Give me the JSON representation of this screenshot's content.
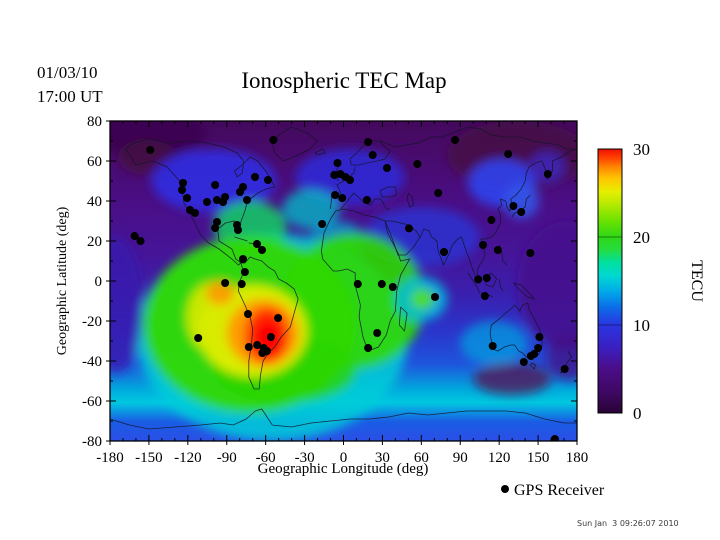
{
  "figure": {
    "date_line1": "01/03/10",
    "date_line2": "17:00 UT",
    "title": "Ionospheric TEC Map",
    "legend_label": "GPS Receiver",
    "timestamp": "Sun Jan  3 09:26:07 2010"
  },
  "chart_data": {
    "type": "heatmap",
    "title": "Ionospheric TEC Map",
    "datetime_shown": "01/03/10 17:00 UT",
    "xlabel": "Geographic Longitude (deg)",
    "ylabel": "Geographic Latitude (deg)",
    "xlim": [
      -180,
      180
    ],
    "ylim": [
      -80,
      80
    ],
    "x_ticks": [
      -180,
      -150,
      -120,
      -90,
      -60,
      -30,
      0,
      30,
      60,
      90,
      120,
      150,
      180
    ],
    "y_ticks": [
      80,
      60,
      40,
      20,
      0,
      -20,
      -40,
      -60,
      -80
    ],
    "x_minor_step": 10,
    "y_minor_step": 10,
    "grid": false,
    "colorbar": {
      "label": "TECU",
      "ticks": [
        0,
        10,
        20,
        30
      ],
      "range": [
        0,
        30
      ],
      "gradient": [
        {
          "t": 0.0,
          "c": "#2a0336"
        },
        {
          "t": 0.08,
          "c": "#3f0864"
        },
        {
          "t": 0.17,
          "c": "#4a0e8a"
        },
        {
          "t": 0.25,
          "c": "#3a20c2"
        },
        {
          "t": 0.333,
          "c": "#2a35e0"
        },
        {
          "t": 0.4,
          "c": "#0c6ce8"
        },
        {
          "t": 0.46,
          "c": "#00aae8"
        },
        {
          "t": 0.52,
          "c": "#00d8d2"
        },
        {
          "t": 0.57,
          "c": "#00e0a0"
        },
        {
          "t": 0.62,
          "c": "#25dc3e"
        },
        {
          "t": 0.667,
          "c": "#2ed816"
        },
        {
          "t": 0.73,
          "c": "#6ee200"
        },
        {
          "t": 0.79,
          "c": "#b4ea00"
        },
        {
          "t": 0.84,
          "c": "#e8ee00"
        },
        {
          "t": 0.89,
          "c": "#ffc400"
        },
        {
          "t": 0.93,
          "c": "#ff8800"
        },
        {
          "t": 0.97,
          "c": "#ff3c00"
        },
        {
          "t": 1.0,
          "c": "#f01000"
        }
      ]
    },
    "tec_peak": {
      "lon": -58,
      "lat": -27,
      "tecu": 30,
      "region": "South America (equatorial anomaly)"
    },
    "base_latitude_gradient": [
      {
        "o": 0.0,
        "c": "#43095c"
      },
      {
        "o": 0.1,
        "c": "#480b6c"
      },
      {
        "o": 0.26,
        "c": "#4a0e86"
      },
      {
        "o": 0.42,
        "c": "#451599"
      },
      {
        "o": 0.54,
        "c": "#3a1fae"
      },
      {
        "o": 0.66,
        "c": "#2a36cc"
      },
      {
        "o": 0.76,
        "c": "#1e55dc"
      },
      {
        "o": 0.84,
        "c": "#00aadd"
      },
      {
        "o": 0.88,
        "c": "#00c8e0"
      },
      {
        "o": 0.94,
        "c": "#1a5ce4"
      },
      {
        "o": 1.0,
        "c": "#2b4fe6"
      }
    ],
    "heat_blobs": [
      {
        "lon": -150,
        "lat": 74,
        "rlon": 45,
        "rlat": 12,
        "c": "#3c0752",
        "op": 0.9
      },
      {
        "lon": 135,
        "lat": 63,
        "rlon": 55,
        "rlat": 17,
        "c": "#470a46",
        "op": 0.85
      },
      {
        "lon": -152,
        "lat": 62,
        "rlon": 22,
        "rlat": 9,
        "c": "#430a40",
        "op": 0.8
      },
      {
        "lon": 172,
        "lat": -2,
        "rlon": 38,
        "rlat": 32,
        "c": "#45098c",
        "op": 0.85
      },
      {
        "lon": -100,
        "lat": 50,
        "rlon": 48,
        "rlat": 16,
        "c": "#2d2de8",
        "op": 0.85
      },
      {
        "lon": 5,
        "lat": 52,
        "rlon": 42,
        "rlat": 14,
        "c": "#2d2de0",
        "op": 0.8
      },
      {
        "lon": 60,
        "lat": 22,
        "rlon": 45,
        "rlat": 15,
        "c": "#2635d8",
        "op": 0.75
      },
      {
        "lon": 122,
        "lat": 49,
        "rlon": 26,
        "rlat": 12,
        "c": "#2f42ee",
        "op": 0.9
      },
      {
        "lon": 137,
        "lat": 40,
        "rlon": 14,
        "rlat": 9,
        "c": "#3355e8",
        "op": 0.85
      },
      {
        "lon": 157,
        "lat": 57,
        "rlon": 14,
        "rlat": 8,
        "c": "#3a2ad0",
        "op": 0.7
      },
      {
        "lon": -55,
        "lat": -28,
        "rlon": 105,
        "rlat": 52,
        "c": "#00ccd8",
        "op": 0.85
      },
      {
        "lon": -72,
        "lat": 27,
        "rlon": 28,
        "rlat": 13,
        "c": "#10dc60",
        "op": 0.8
      },
      {
        "lon": -25,
        "lat": 36,
        "rlon": 22,
        "rlat": 10,
        "c": "#00c0c8",
        "op": 0.75
      },
      {
        "lon": -5,
        "lat": 20,
        "rlon": 22,
        "rlat": 10,
        "c": "#00b4d4",
        "op": 0.7
      },
      {
        "lon": -72,
        "lat": -22,
        "rlon": 82,
        "rlat": 44,
        "c": "#2fd800",
        "op": 0.95
      },
      {
        "lon": 8,
        "lat": -10,
        "rlon": 55,
        "rlat": 34,
        "c": "#2fd800",
        "op": 0.9
      },
      {
        "lon": -45,
        "lat": -45,
        "rlon": 55,
        "rlat": 16,
        "c": "#2bd400",
        "op": 0.8
      },
      {
        "lon": -175,
        "lat": -12,
        "rlon": 20,
        "rlat": 34,
        "c": "#381cae",
        "op": 0.8
      },
      {
        "lon": 60,
        "lat": -9,
        "rlon": 20,
        "rlat": 11,
        "c": "#00bce0",
        "op": 0.85
      },
      {
        "lon": 61,
        "lat": -9,
        "rlon": 9,
        "rlat": 5,
        "c": "#55e000",
        "op": 0.9
      },
      {
        "lon": -70,
        "lat": -25,
        "rlon": 42,
        "rlat": 23,
        "c": "#e2ee00",
        "op": 0.95
      },
      {
        "lon": -103,
        "lat": -18,
        "rlon": 18,
        "rlat": 17,
        "c": "#d8ea00",
        "op": 0.9
      },
      {
        "lon": -62,
        "lat": -26,
        "rlon": 28,
        "rlat": 17,
        "c": "#ff9800",
        "op": 0.95
      },
      {
        "lon": -95,
        "lat": -6,
        "rlon": 11,
        "rlat": 6,
        "c": "#ff9800",
        "op": 0.9
      },
      {
        "lon": -59,
        "lat": -27,
        "rlon": 17,
        "rlat": 14,
        "c": "#ff2a00",
        "op": 0.95
      },
      {
        "lon": -58,
        "lat": -28,
        "rlon": 11,
        "rlat": 9,
        "c": "#ff0000",
        "op": 1
      },
      {
        "lon": 116,
        "lat": -31,
        "rlon": 26,
        "rlat": 11,
        "c": "#00a2e0",
        "op": 0.7
      },
      {
        "lon": 130,
        "lat": -49,
        "rlon": 30,
        "rlat": 8,
        "c": "#550a50",
        "op": 0.75
      },
      {
        "lon": 174,
        "lat": -38,
        "rlon": 18,
        "rlat": 12,
        "c": "#430c86",
        "op": 0.75
      }
    ],
    "gps_receivers": [
      [
        -149,
        65.5
      ],
      [
        -54,
        70.5
      ],
      [
        -161,
        22.5
      ],
      [
        -156.5,
        20
      ],
      [
        -123.7,
        49
      ],
      [
        -124.5,
        45.5
      ],
      [
        -120.6,
        41.5
      ],
      [
        -118.3,
        35.5
      ],
      [
        -114.5,
        34
      ],
      [
        -99,
        48
      ],
      [
        -105.2,
        39.5
      ],
      [
        -97.5,
        40.5
      ],
      [
        -91.3,
        42
      ],
      [
        -92.9,
        39.5
      ],
      [
        -79.8,
        44.5
      ],
      [
        -77.5,
        47
      ],
      [
        -68.2,
        52
      ],
      [
        -74.4,
        40.5
      ],
      [
        -58.2,
        50.5
      ],
      [
        -97.5,
        29.5
      ],
      [
        -99,
        26.5
      ],
      [
        -82.1,
        28
      ],
      [
        -81.3,
        25.5
      ],
      [
        -66.7,
        18.5
      ],
      [
        -62.8,
        15.5
      ],
      [
        -77.5,
        11
      ],
      [
        -76,
        4.5
      ],
      [
        -91.3,
        -1
      ],
      [
        -78.5,
        -1.5
      ],
      [
        -73.6,
        -16.5
      ],
      [
        -50.4,
        -18.5
      ],
      [
        -56,
        -28
      ],
      [
        -112,
        -28.5
      ],
      [
        -73,
        -33
      ],
      [
        -66.5,
        -32
      ],
      [
        -61.5,
        -33.5
      ],
      [
        -59,
        -35
      ],
      [
        -62.5,
        -36
      ],
      [
        19,
        69.5
      ],
      [
        22.5,
        63
      ],
      [
        -4.6,
        59
      ],
      [
        -7,
        53
      ],
      [
        -2.5,
        53.5
      ],
      [
        1.5,
        52
      ],
      [
        5,
        50.5
      ],
      [
        -6.5,
        43
      ],
      [
        -1,
        41.5
      ],
      [
        18,
        40.5
      ],
      [
        33.5,
        56.5
      ],
      [
        57,
        58.5
      ],
      [
        73,
        44
      ],
      [
        86,
        70.5
      ],
      [
        127,
        63.5
      ],
      [
        157.5,
        53.5
      ],
      [
        -16.5,
        28.5
      ],
      [
        11,
        -1.5
      ],
      [
        29.5,
        -1.5
      ],
      [
        38,
        -3
      ],
      [
        26,
        -26
      ],
      [
        19,
        -33.5
      ],
      [
        70.5,
        -8
      ],
      [
        50.5,
        26.3
      ],
      [
        77.5,
        14.5
      ],
      [
        107.5,
        18
      ],
      [
        119,
        15.5
      ],
      [
        144,
        14
      ],
      [
        103.8,
        0.8
      ],
      [
        110.5,
        1.5
      ],
      [
        109,
        -7.5
      ],
      [
        114,
        30.5
      ],
      [
        131,
        37.5
      ],
      [
        137,
        34.5
      ],
      [
        115,
        -32.5
      ],
      [
        151,
        -28
      ],
      [
        150,
        -33.5
      ],
      [
        147,
        -36.5
      ],
      [
        144.5,
        -37.5
      ],
      [
        139,
        -40.5
      ],
      [
        170.5,
        -44
      ],
      [
        163,
        -79
      ]
    ]
  }
}
